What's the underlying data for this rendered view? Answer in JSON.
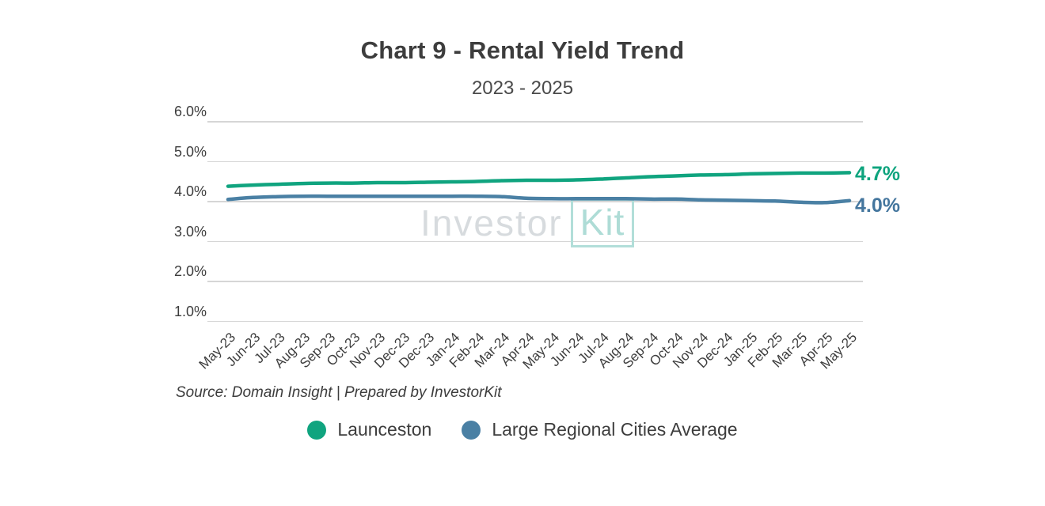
{
  "title": "Chart 9 - Rental Yield Trend",
  "subtitle": "2023 - 2025",
  "source_note": "Source: Domain Insight | Prepared by InvestorKit",
  "watermark": {
    "part1": "Investor",
    "part2": "Kit"
  },
  "colors": {
    "launceston": "#10a47f",
    "regional": "#4a80a4",
    "launceston_label": "#0ea47e",
    "regional_label": "#44769e",
    "gridline": "#d6d6d6",
    "text": "#3d3d3d"
  },
  "chart_data": {
    "type": "line",
    "title": "Chart 9 - Rental Yield Trend",
    "subtitle": "2023 - 2025",
    "categories": [
      "May-23",
      "Jun-23",
      "Jul-23",
      "Aug-23",
      "Sep-23",
      "Oct-23",
      "Nov-23",
      "Dec-23",
      "Dec-23",
      "Jan-24",
      "Feb-24",
      "Mar-24",
      "Apr-24",
      "May-24",
      "Jun-24",
      "Jul-24",
      "Aug-24",
      "Sep-24",
      "Oct-24",
      "Nov-24",
      "Dec-24",
      "Jan-25",
      "Feb-25",
      "Mar-25",
      "Apr-25",
      "May-25"
    ],
    "series": [
      {
        "name": "Launceston",
        "color": "#10a47f",
        "end_label": "4.7%",
        "values": [
          4.37,
          4.4,
          4.42,
          4.44,
          4.45,
          4.45,
          4.46,
          4.46,
          4.47,
          4.48,
          4.49,
          4.51,
          4.52,
          4.52,
          4.53,
          4.55,
          4.58,
          4.61,
          4.63,
          4.65,
          4.66,
          4.68,
          4.69,
          4.7,
          4.7,
          4.71
        ]
      },
      {
        "name": "Large Regional Cities Average",
        "color": "#4a80a4",
        "end_label": "4.0%",
        "values": [
          4.04,
          4.09,
          4.11,
          4.12,
          4.12,
          4.12,
          4.12,
          4.12,
          4.12,
          4.12,
          4.12,
          4.11,
          4.07,
          4.06,
          4.06,
          4.06,
          4.06,
          4.05,
          4.05,
          4.03,
          4.02,
          4.01,
          4.0,
          3.97,
          3.96,
          4.01
        ]
      }
    ],
    "ylabel": "",
    "xlabel": "",
    "ylim": [
      1.0,
      6.0
    ],
    "yticks": [
      {
        "label": "6.0%",
        "value": 6.0
      },
      {
        "label": "5.0%",
        "value": 5.0
      },
      {
        "label": "4.0%",
        "value": 4.0
      },
      {
        "label": "3.0%",
        "value": 3.0
      },
      {
        "label": "2.0%",
        "value": 2.0
      },
      {
        "label": "1.0%",
        "value": 1.0
      }
    ],
    "grid": "horizontal",
    "legend_position": "bottom"
  }
}
